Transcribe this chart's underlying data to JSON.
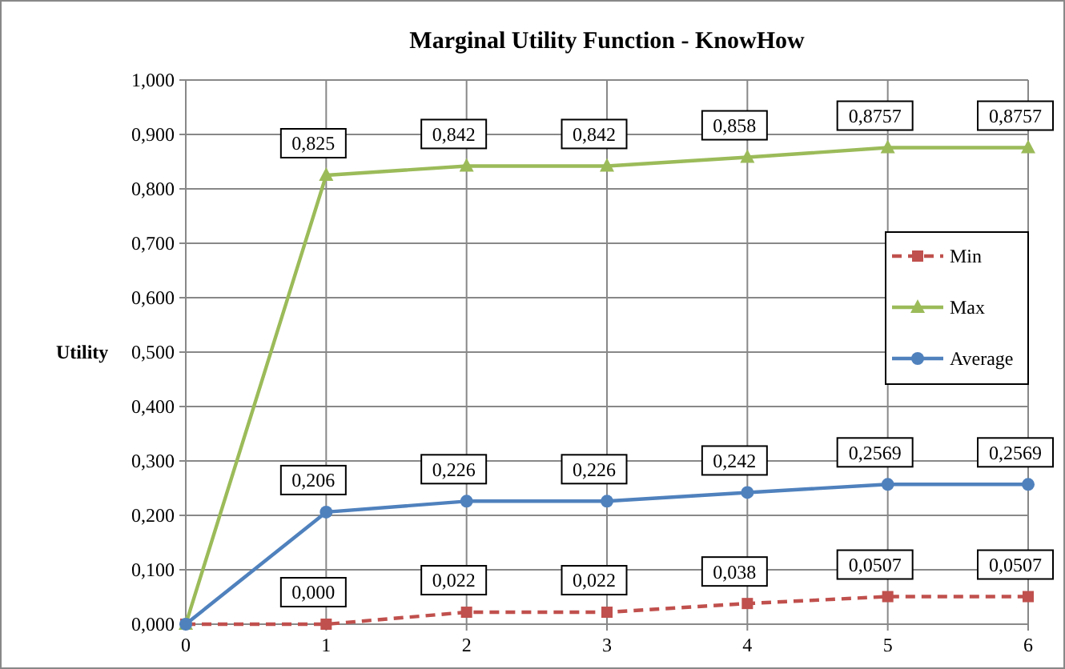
{
  "chart_data": {
    "type": "line",
    "title": "Marginal Utility Function - KnowHow",
    "ylabel": "Utility",
    "x": [
      0,
      1,
      2,
      3,
      4,
      5,
      6
    ],
    "xlim": [
      0,
      6
    ],
    "xticks": [
      0,
      1,
      2,
      3,
      4,
      5,
      6
    ],
    "ylim": [
      0,
      1
    ],
    "yticks": [
      {
        "value": 0,
        "label": "0,000"
      },
      {
        "value": 0.1,
        "label": "0,100"
      },
      {
        "value": 0.2,
        "label": "0,200"
      },
      {
        "value": 0.3,
        "label": "0,300"
      },
      {
        "value": 0.4,
        "label": "0,400"
      },
      {
        "value": 0.5,
        "label": "0,500"
      },
      {
        "value": 0.6,
        "label": "0,600"
      },
      {
        "value": 0.7,
        "label": "0,700"
      },
      {
        "value": 0.8,
        "label": "0,800"
      },
      {
        "value": 0.9,
        "label": "0,900"
      },
      {
        "value": 1,
        "label": "1,000"
      }
    ],
    "grid": true,
    "legend": "right",
    "series": [
      {
        "name": "Min",
        "color": "#c0504d",
        "marker": "square",
        "line_style": "dashed",
        "values": [
          0,
          0,
          0.022,
          0.022,
          0.038,
          0.0507,
          0.0507
        ],
        "value_labels": [
          null,
          "0,000",
          "0,022",
          "0,022",
          "0,038",
          "0,0507",
          "0,0507"
        ]
      },
      {
        "name": "Max",
        "color": "#9bbb59",
        "marker": "triangle",
        "line_style": "solid",
        "values": [
          0,
          0.825,
          0.842,
          0.842,
          0.858,
          0.8757,
          0.8757
        ],
        "value_labels": [
          null,
          "0,825",
          "0,842",
          "0,842",
          "0,858",
          "0,8757",
          "0,8757"
        ]
      },
      {
        "name": "Average",
        "color": "#4f81bd",
        "marker": "circle",
        "line_style": "solid",
        "values": [
          0,
          0.206,
          0.226,
          0.226,
          0.242,
          0.2569,
          0.2569
        ],
        "value_labels": [
          null,
          "0,206",
          "0,226",
          "0,226",
          "0,242",
          "0,2569",
          "0,2569"
        ]
      }
    ]
  }
}
